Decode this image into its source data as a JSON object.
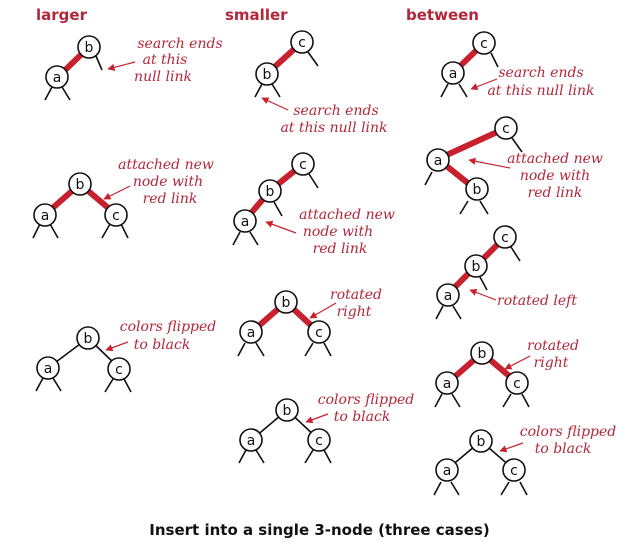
{
  "headers": {
    "larger": "larger",
    "smaller": "smaller",
    "between": "between"
  },
  "caption": "Insert into a single 3-node (three cases)",
  "keys": {
    "a": "a",
    "b": "b",
    "c": "c"
  },
  "labels": {
    "search_ends": [
      "search ends",
      "at this",
      "null link"
    ],
    "search_ends_2": [
      "search ends",
      "at this null link"
    ],
    "attached": [
      "attached new",
      "node with",
      "red link"
    ],
    "colors_flipped": [
      "colors flipped",
      "to black"
    ],
    "rotated_right": [
      "rotated",
      "right"
    ],
    "rotated_left": "rotated left"
  },
  "colors": {
    "red_link": "#c8202e",
    "annotation": "#b3273a",
    "black_link": "#111111"
  }
}
